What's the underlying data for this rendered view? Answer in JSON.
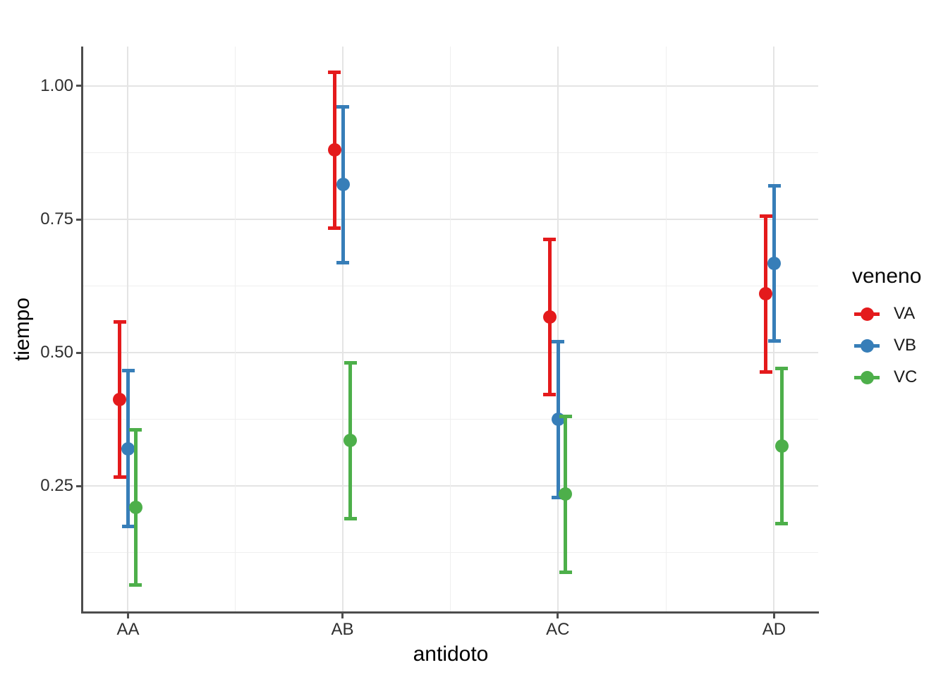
{
  "chart_data": {
    "type": "pointrange",
    "title": "",
    "xlabel": "antidoto",
    "ylabel": "tiempo",
    "categories": [
      "AA",
      "AB",
      "AC",
      "AD"
    ],
    "y_ticks": [
      {
        "value": 0.25,
        "label": "0.25"
      },
      {
        "value": 0.5,
        "label": "0.50"
      },
      {
        "value": 0.75,
        "label": "0.75"
      },
      {
        "value": 1.0,
        "label": "1.00"
      }
    ],
    "y_minor_ticks": [
      0.125,
      0.375,
      0.625,
      0.875
    ],
    "ylim": [
      0.015,
      1.074
    ],
    "grid": true,
    "legend": {
      "title": "veneno",
      "position": "right",
      "entries": [
        {
          "label": "VA",
          "color": "#E41A1C"
        },
        {
          "label": "VB",
          "color": "#377EB8"
        },
        {
          "label": "VC",
          "color": "#4DAF4A"
        }
      ]
    },
    "series": [
      {
        "name": "VA",
        "color": "#E41A1C",
        "means": [
          0.4125,
          0.88,
          0.5675,
          0.61
        ],
        "lower": [
          0.267,
          0.734,
          0.422,
          0.464
        ],
        "upper": [
          0.558,
          1.026,
          0.713,
          0.756
        ]
      },
      {
        "name": "VB",
        "color": "#377EB8",
        "means": [
          0.32,
          0.815,
          0.375,
          0.6675
        ],
        "lower": [
          0.174,
          0.669,
          0.229,
          0.522
        ],
        "upper": [
          0.466,
          0.961,
          0.521,
          0.813
        ]
      },
      {
        "name": "VC",
        "color": "#4DAF4A",
        "means": [
          0.21,
          0.335,
          0.235,
          0.325
        ],
        "lower": [
          0.064,
          0.189,
          0.089,
          0.179
        ],
        "upper": [
          0.356,
          0.481,
          0.381,
          0.471
        ]
      }
    ],
    "colors": {
      "grid_major": "#e4e4e4",
      "grid_minor": "#efefef",
      "axis": "#4d4d4d",
      "tick_text": "#2f2f2f",
      "title_text": "#000000"
    }
  }
}
